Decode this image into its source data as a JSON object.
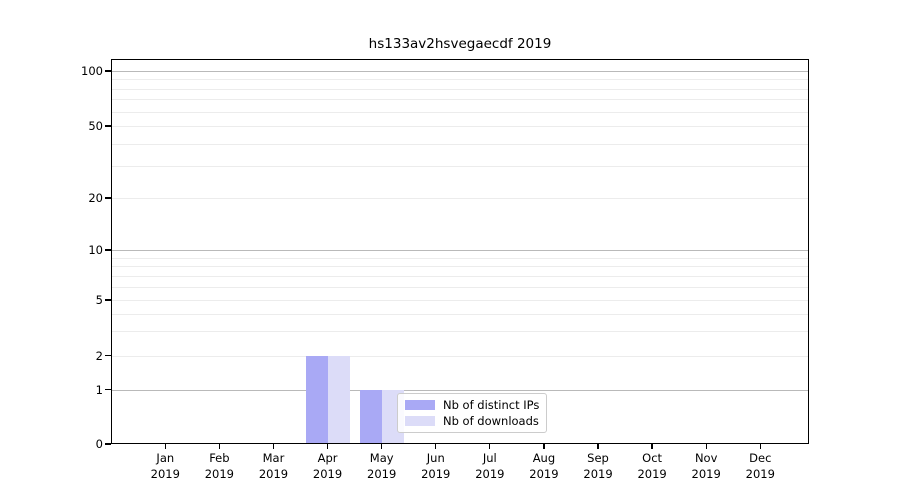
{
  "chart_data": {
    "type": "bar",
    "title": "hs133av2hsvegaecdf 2019",
    "x_tick_labels": [
      {
        "month": "Jan",
        "year": "2019"
      },
      {
        "month": "Feb",
        "year": "2019"
      },
      {
        "month": "Mar",
        "year": "2019"
      },
      {
        "month": "Apr",
        "year": "2019"
      },
      {
        "month": "May",
        "year": "2019"
      },
      {
        "month": "Jun",
        "year": "2019"
      },
      {
        "month": "Jul",
        "year": "2019"
      },
      {
        "month": "Aug",
        "year": "2019"
      },
      {
        "month": "Sep",
        "year": "2019"
      },
      {
        "month": "Oct",
        "year": "2019"
      },
      {
        "month": "Nov",
        "year": "2019"
      },
      {
        "month": "Dec",
        "year": "2019"
      }
    ],
    "series": [
      {
        "name": "Nb of distinct IPs",
        "color": "#a9a9f5",
        "values": [
          0,
          0,
          0,
          2,
          1,
          0,
          0,
          0,
          0,
          0,
          0,
          0
        ]
      },
      {
        "name": "Nb of downloads",
        "color": "#dcdcf8",
        "values": [
          0,
          0,
          0,
          2,
          1,
          0,
          0,
          0,
          0,
          0,
          0,
          0
        ]
      }
    ],
    "yaxis": {
      "scale": "symlog",
      "range": [
        0,
        100
      ],
      "tick_values": [
        0,
        1,
        2,
        5,
        10,
        20,
        50,
        100
      ],
      "tick_labels": [
        "0",
        "1",
        "2",
        "5",
        "10",
        "20",
        "50",
        "100"
      ],
      "major_grid_values": [
        1,
        10,
        100
      ],
      "minor_grid_values": [
        3,
        4,
        6,
        7,
        8,
        9,
        30,
        40,
        60,
        70,
        80,
        90
      ]
    },
    "legend": {
      "position": "lower center",
      "items": [
        "Nb of distinct IPs",
        "Nb of downloads"
      ]
    },
    "grid": true,
    "colors": {
      "major_grid": "#b9b9b9",
      "minor_grid": "#ececec",
      "spine": "#000000",
      "text": "#000000",
      "legend_border": "#cccccc"
    }
  }
}
